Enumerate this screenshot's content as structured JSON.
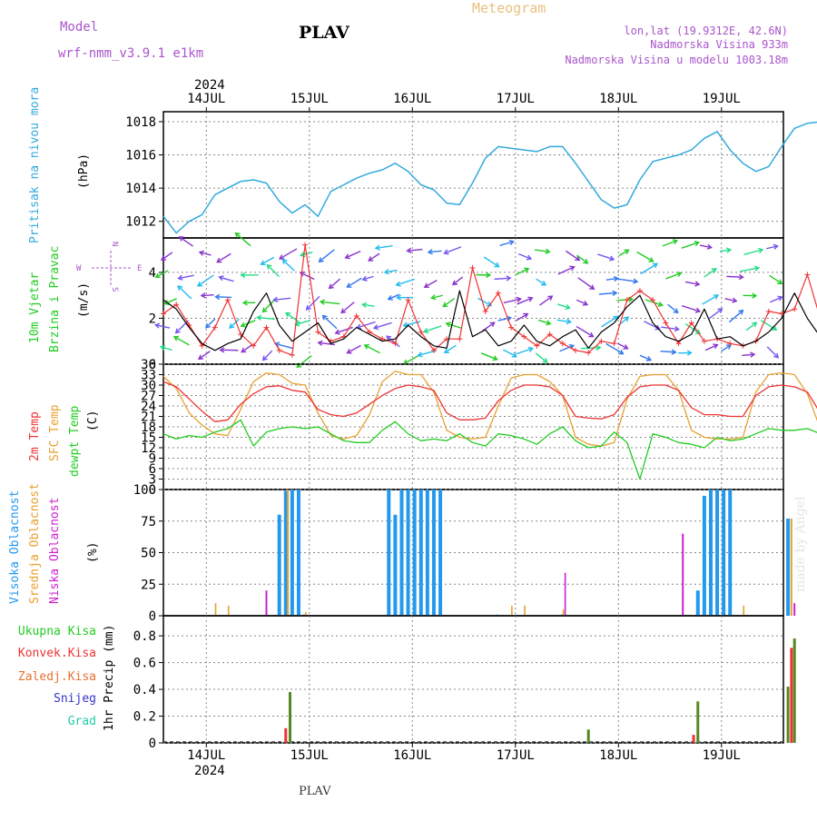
{
  "header": {
    "model_label": "Model",
    "model_name": "wrf-nmm_v3.9.1  e1km",
    "title": "Meteogram",
    "station": "PLAV",
    "lonlat": "lon,lat (19.9312E, 42.6N)",
    "altitude": "Nadmorska Visina 933m",
    "model_altitude": "Nadmorska Visina u modelu 1003.18m"
  },
  "footer": {
    "station": "PLAV",
    "watermark": "made by Angel"
  },
  "time_axis": {
    "year": "2024",
    "days": [
      "14JUL",
      "15JUL",
      "16JUL",
      "17JUL",
      "18JUL",
      "19JUL"
    ]
  },
  "colors": {
    "pressure": "#33aadd",
    "wind": "#000000",
    "gust": "#ee3333",
    "t2m": "#ee3333",
    "sfc": "#e8a030",
    "dew": "#22cc22",
    "high_cloud": "#2299ee",
    "mid_cloud": "#e8a030",
    "low_cloud": "#cc22cc",
    "total_precip": "#558822",
    "conv_precip": "#ee3333",
    "grid": "#888888"
  },
  "chart_data": [
    {
      "type": "line",
      "title": "Pritisak na nivou mora",
      "ylabel": "(hPa)",
      "ylim": [
        1011,
        1018.6
      ],
      "yticks": [
        1012,
        1014,
        1016,
        1018
      ],
      "x_start": "2024-07-13T14:00",
      "step_hours": 3,
      "series": [
        {
          "name": "Pritisak na nivou mora",
          "values": [
            1012.3,
            1011.3,
            1012.0,
            1012.4,
            1013.6,
            1014.0,
            1014.4,
            1014.5,
            1014.3,
            1013.2,
            1012.5,
            1013.0,
            1012.3,
            1013.8,
            1014.2,
            1014.6,
            1014.9,
            1015.1,
            1015.5,
            1015.0,
            1014.2,
            1013.9,
            1013.1,
            1013.0,
            1014.3,
            1015.8,
            1016.5,
            1016.4,
            1016.3,
            1016.2,
            1016.5,
            1016.5,
            1015.5,
            1014.4,
            1013.3,
            1012.8,
            1013.0,
            1014.5,
            1015.6,
            1015.8,
            1016.0,
            1016.3,
            1017.0,
            1017.4,
            1016.3,
            1015.5,
            1015.0,
            1015.3,
            1016.5,
            1017.6,
            1017.9,
            1018.0,
            1018.1,
            1018.3,
            1017.5,
            1016.2,
            1015.2,
            1015.0,
            1015.3,
            1015.7,
            1016.8,
            1017.3,
            1017.0,
            1016.6,
            1016.4,
            1015.5,
            1014.6,
            1014.9,
            1013.7
          ]
        }
      ]
    },
    {
      "type": "line",
      "title": "10m Vjetar Brzina i Pravac",
      "ylabel": "(m/s)",
      "ylim": [
        0,
        5.5
      ],
      "yticks": [
        0,
        2,
        4
      ],
      "x_start": "2024-07-13T14:00",
      "step_hours": 3,
      "compass": [
        "N",
        "W",
        "E",
        "S"
      ],
      "series": [
        {
          "name": "10m Vjetar",
          "values": [
            2.8,
            2.4,
            1.6,
            0.9,
            0.6,
            0.9,
            1.1,
            2.3,
            3.1,
            1.7,
            1.0,
            1.4,
            1.8,
            0.9,
            1.1,
            1.6,
            1.3,
            1.0,
            1.1,
            1.7,
            1.2,
            0.8,
            0.7,
            3.2,
            1.2,
            1.5,
            0.8,
            1.0,
            1.7,
            1.0,
            0.8,
            1.2,
            1.5,
            0.7,
            1.4,
            1.8,
            2.5,
            3.0,
            1.8,
            1.2,
            1.0,
            1.3,
            2.4,
            1.1,
            1.2,
            0.8,
            1.0,
            1.4,
            2.0,
            3.1,
            2.0,
            1.2,
            1.1,
            0.8,
            1.3,
            1.0,
            0.9,
            1.5,
            2.2,
            3.4,
            3.1,
            1.1,
            1.6,
            1.4,
            1.7,
            1.2,
            1.2,
            1.9,
            3.1
          ]
        },
        {
          "name": "Udari",
          "values": [
            2.2,
            2.6,
            1.7,
            0.8,
            1.6,
            2.8,
            1.3,
            0.8,
            1.6,
            0.6,
            0.4,
            5.2,
            1.4,
            1.0,
            1.2,
            2.1,
            1.4,
            1.1,
            0.9,
            2.8,
            1.4,
            0.6,
            1.1,
            1.1,
            4.2,
            2.3,
            3.1,
            1.6,
            1.2,
            0.8,
            1.3,
            0.9,
            0.6,
            0.5,
            1.0,
            0.9,
            2.8,
            3.2,
            2.8,
            1.8,
            0.9,
            1.8,
            1.0,
            1.1,
            0.9,
            0.8,
            1.0,
            2.3,
            2.2,
            2.4,
            3.9,
            2.0,
            1.6,
            0.8,
            1.1,
            1.3,
            0.9,
            0.8,
            1.6,
            2.6,
            1.6,
            1.4,
            3.0,
            0.7,
            0.8,
            1.1,
            1.3,
            1.2,
            4.4
          ]
        }
      ]
    },
    {
      "type": "line",
      "ylabel": "(C)",
      "ylim": [
        0,
        36
      ],
      "yticks": [
        0,
        3,
        6,
        9,
        12,
        15,
        18,
        21,
        24,
        27,
        30,
        33,
        36
      ],
      "x_start": "2024-07-13T14:00",
      "step_hours": 3,
      "series": [
        {
          "name": "2m Temp",
          "values": [
            31.0,
            29.5,
            26.0,
            22.5,
            19.5,
            20.0,
            24.5,
            27.5,
            29.5,
            29.8,
            28.5,
            28.0,
            23.0,
            21.5,
            21.0,
            22.0,
            24.5,
            27.0,
            29.0,
            30.0,
            29.5,
            28.5,
            22.0,
            20.0,
            20.0,
            20.5,
            25.5,
            28.5,
            30.0,
            30.0,
            29.5,
            27.0,
            21.0,
            20.5,
            20.3,
            21.5,
            26.5,
            29.5,
            30.0,
            30.0,
            28.5,
            23.5,
            21.5,
            21.5,
            21.0,
            21.0,
            27.0,
            29.5,
            30.0,
            29.5,
            28.0,
            22.0,
            21.0,
            20.5,
            21.0,
            21.0,
            27.5,
            30.0,
            30.5,
            30.5,
            29.0,
            24.0,
            21.0,
            20.5,
            20.5,
            21.0,
            28.0,
            29.0,
            22.0
          ]
        },
        {
          "name": "SFC Temp",
          "values": [
            32.5,
            29.0,
            22.0,
            18.5,
            16.0,
            15.5,
            23.0,
            31.0,
            33.5,
            33.0,
            30.5,
            30.0,
            22.0,
            15.5,
            14.5,
            15.5,
            21.5,
            31.0,
            34.0,
            33.0,
            33.0,
            28.0,
            17.0,
            15.0,
            14.5,
            15.0,
            24.0,
            32.0,
            33.0,
            33.0,
            31.0,
            27.0,
            15.0,
            13.0,
            12.5,
            13.5,
            26.0,
            32.5,
            33.0,
            33.0,
            28.5,
            17.0,
            15.0,
            14.5,
            14.5,
            15.0,
            28.0,
            33.0,
            33.5,
            33.0,
            27.5,
            17.5,
            16.5,
            15.5,
            15.0,
            16.0,
            29.5,
            33.0,
            33.5,
            33.5,
            26.5,
            17.5,
            15.5,
            14.5,
            14.0,
            15.0,
            30.0,
            32.0,
            27.0
          ]
        },
        {
          "name": "dewpt Temp",
          "values": [
            16.0,
            14.5,
            15.5,
            15.0,
            16.5,
            17.5,
            20.0,
            12.5,
            16.5,
            17.5,
            18.0,
            17.5,
            18.0,
            16.0,
            14.0,
            13.5,
            13.5,
            17.0,
            19.5,
            16.0,
            14.0,
            14.5,
            14.0,
            16.0,
            13.5,
            12.5,
            16.0,
            15.5,
            14.5,
            13.0,
            16.0,
            18.0,
            14.0,
            12.0,
            12.5,
            16.5,
            13.5,
            3.0,
            16.0,
            15.0,
            13.5,
            13.0,
            12.0,
            15.0,
            14.0,
            14.5,
            16.0,
            17.5,
            17.0,
            17.0,
            17.5,
            16.0,
            17.0,
            17.5,
            17.0,
            16.5,
            17.5,
            15.5,
            18.0,
            19.0,
            17.5,
            17.0,
            16.0,
            16.5,
            15.0,
            17.5,
            18.5,
            17.0,
            19.0
          ]
        }
      ]
    },
    {
      "type": "bar",
      "ylabel": "(%)",
      "ylim": [
        0,
        100
      ],
      "yticks": [
        0,
        25,
        50,
        75,
        100
      ],
      "x_start": "2024-07-13T14:00",
      "step_hours": 3,
      "series": [
        {
          "name": "Visoka Oblacnost",
          "values": [
            0,
            0,
            0,
            0,
            0,
            0,
            0,
            0,
            0,
            0,
            0,
            1,
            0,
            0,
            0,
            0,
            0,
            0,
            0,
            1,
            0,
            0,
            0,
            0,
            0,
            0,
            1,
            0,
            0,
            0,
            0,
            1,
            0,
            0,
            0,
            0,
            0,
            0,
            0,
            0,
            0,
            0,
            1,
            0,
            0,
            0,
            0,
            0,
            0,
            0,
            0,
            0,
            1,
            0,
            0,
            0,
            0,
            0,
            0,
            0,
            0,
            0,
            0,
            0,
            0,
            0,
            0,
            0,
            0
          ]
        },
        {
          "name": "Srednja Oblacnost",
          "values": [
            0,
            0,
            0,
            0,
            10,
            8,
            0,
            0,
            0,
            0,
            0,
            3,
            0,
            0,
            0,
            0,
            0,
            0,
            0,
            10,
            12,
            0,
            0,
            0,
            0,
            0,
            0,
            8,
            8,
            0,
            0,
            5,
            0,
            0,
            0,
            0,
            0,
            0,
            0,
            0,
            0,
            0,
            0,
            0,
            10,
            8,
            0,
            0,
            0,
            0,
            0,
            0,
            5,
            10,
            9,
            0,
            0,
            0,
            0,
            0,
            0,
            0,
            0,
            0,
            0,
            0,
            0,
            0,
            0
          ]
        },
        {
          "name": "Niska Oblacnost",
          "values": [
            0,
            0,
            0,
            0,
            0,
            0,
            0,
            0,
            0,
            0,
            0,
            0,
            0,
            0,
            0,
            0,
            0,
            0,
            0,
            0,
            0,
            0,
            0,
            0,
            0,
            0,
            0,
            0,
            0,
            0,
            0,
            34,
            0,
            0,
            0,
            0,
            0,
            0,
            0,
            0,
            0,
            0,
            0,
            0,
            0,
            0,
            0,
            0,
            0,
            0,
            0,
            0,
            0,
            0,
            0,
            0,
            0,
            0,
            0,
            0,
            0,
            0,
            0,
            0,
            0,
            0,
            0,
            0,
            0
          ]
        }
      ],
      "high_cloud_bars": [
        {
          "hour": 27,
          "value": 80
        },
        {
          "hour": 28.5,
          "value": 99
        },
        {
          "hour": 30,
          "value": 100
        },
        {
          "hour": 31.5,
          "value": 100
        },
        {
          "hour": 52.5,
          "value": 100
        },
        {
          "hour": 54,
          "value": 80
        },
        {
          "hour": 55.5,
          "value": 100
        },
        {
          "hour": 57,
          "value": 100
        },
        {
          "hour": 58.5,
          "value": 100
        },
        {
          "hour": 60,
          "value": 100
        },
        {
          "hour": 61.5,
          "value": 100
        },
        {
          "hour": 63,
          "value": 100
        },
        {
          "hour": 64.5,
          "value": 100
        },
        {
          "hour": 124.5,
          "value": 20
        },
        {
          "hour": 126,
          "value": 95
        },
        {
          "hour": 127.5,
          "value": 100
        },
        {
          "hour": 129,
          "value": 100
        },
        {
          "hour": 130.5,
          "value": 100
        },
        {
          "hour": 132,
          "value": 100
        },
        {
          "hour": 145.5,
          "value": 77
        }
      ],
      "mid_cloud_extra": [
        {
          "hour": 29,
          "value": 100
        },
        {
          "hour": 146.3,
          "value": 77
        }
      ],
      "low_cloud_extra": [
        {
          "hour": 24,
          "value": 20
        },
        {
          "hour": 121,
          "value": 65
        },
        {
          "hour": 147,
          "value": 10
        }
      ]
    },
    {
      "type": "bar",
      "ylabel": "1hr Precip (mm)",
      "ylim": [
        0,
        0.95
      ],
      "yticks": [
        0,
        0.2,
        0.4,
        0.6,
        0.8
      ],
      "legend": [
        "Ukupna Kisa",
        "Konvek.Kisa",
        "Zaledj.Kisa",
        "Snijeg",
        "Grad"
      ],
      "bars": [
        {
          "name": "Konvek.Kisa",
          "hour": 28.5,
          "value": 0.11
        },
        {
          "name": "Ukupna Kisa",
          "hour": 29.5,
          "value": 0.38
        },
        {
          "name": "Ukupna Kisa",
          "hour": 99,
          "value": 0.1
        },
        {
          "name": "Konvek.Kisa",
          "hour": 123.5,
          "value": 0.06
        },
        {
          "name": "Ukupna Kisa",
          "hour": 124.5,
          "value": 0.31
        },
        {
          "name": "Ukupna Kisa",
          "hour": 145.5,
          "value": 0.42
        },
        {
          "name": "Konvek.Kisa",
          "hour": 146.3,
          "value": 0.71
        },
        {
          "name": "Ukupna Kisa",
          "hour": 147,
          "value": 0.78
        }
      ]
    }
  ],
  "labels": {
    "pressure": "Pritisak na nivou mora",
    "pressure_unit": "(hPa)",
    "wind1": "10m Vjetar",
    "wind2": "Brzina i Pravac",
    "wind_unit": "(m/s)",
    "t2m": "2m Temp",
    "sfc": "SFC Temp",
    "dew": "dewpt Temp",
    "temp_unit": "(C)",
    "high": "Visoka Oblacnost",
    "mid": "Srednja Oblacnost",
    "low": "Niska Oblacnost",
    "cloud_unit": "(%)",
    "precip_unit": "1hr Precip (mm)",
    "precip_legend": [
      "Ukupna Kisa",
      "Konvek.Kisa",
      "Zaledj.Kisa",
      "Snijeg",
      "Grad"
    ]
  }
}
